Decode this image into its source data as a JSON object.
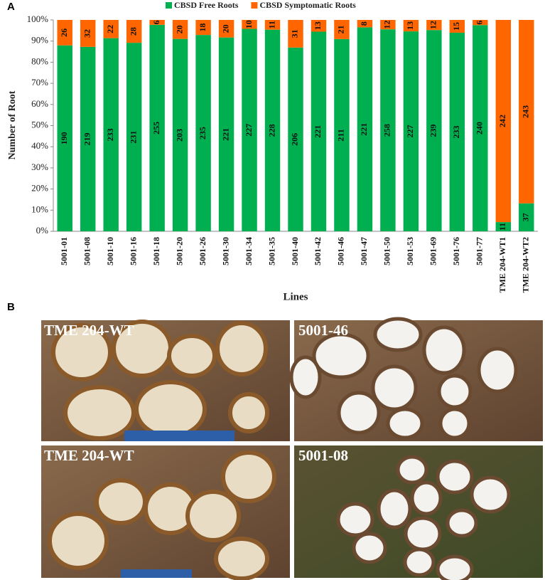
{
  "panel_a": "A",
  "panel_b": "B",
  "chart_data": {
    "type": "bar",
    "stacking": "percent",
    "ylabel": "Number of Root",
    "xlabel": "Lines",
    "categories": [
      "5001-01",
      "5001-08",
      "5001-10",
      "5001-16",
      "5001-18",
      "5001-20",
      "5001-26",
      "5001-30",
      "5001-34",
      "5001-35",
      "5001-40",
      "5001-42",
      "5001-46",
      "5001-47",
      "5001-50",
      "5001-53",
      "5001-69",
      "5001-76",
      "5001-77",
      "TME 204-WT1",
      "TME 204-WT2"
    ],
    "series": [
      {
        "name": "CBSD Free Roots",
        "color": "#00b050",
        "values": [
          190,
          219,
          233,
          231,
          255,
          203,
          235,
          221,
          227,
          228,
          206,
          221,
          211,
          221,
          258,
          227,
          239,
          233,
          240,
          11,
          37
        ]
      },
      {
        "name": "CBSD Symptomatic Roots",
        "color": "#ff6600",
        "values": [
          26,
          32,
          22,
          28,
          6,
          20,
          18,
          20,
          10,
          11,
          31,
          13,
          21,
          8,
          12,
          13,
          12,
          15,
          6,
          242,
          243
        ]
      }
    ],
    "ylim": [
      0,
      100
    ],
    "yticks": [
      {
        "value": 0,
        "label": "0%"
      },
      {
        "value": 10,
        "label": "10%"
      },
      {
        "value": 20,
        "label": "20%"
      },
      {
        "value": 30,
        "label": "30%"
      },
      {
        "value": 40,
        "label": "40%"
      },
      {
        "value": 50,
        "label": "50%"
      },
      {
        "value": 60,
        "label": "60%"
      },
      {
        "value": 70,
        "label": "70%"
      },
      {
        "value": 80,
        "label": "80%"
      },
      {
        "value": 90,
        "label": "90%"
      },
      {
        "value": 100,
        "label": "100%"
      }
    ],
    "legend": "top"
  },
  "photos": [
    {
      "label": "TME 204-WT"
    },
    {
      "label": "5001-46"
    },
    {
      "label": "TME 204-WT"
    },
    {
      "label": "5001-08"
    }
  ]
}
